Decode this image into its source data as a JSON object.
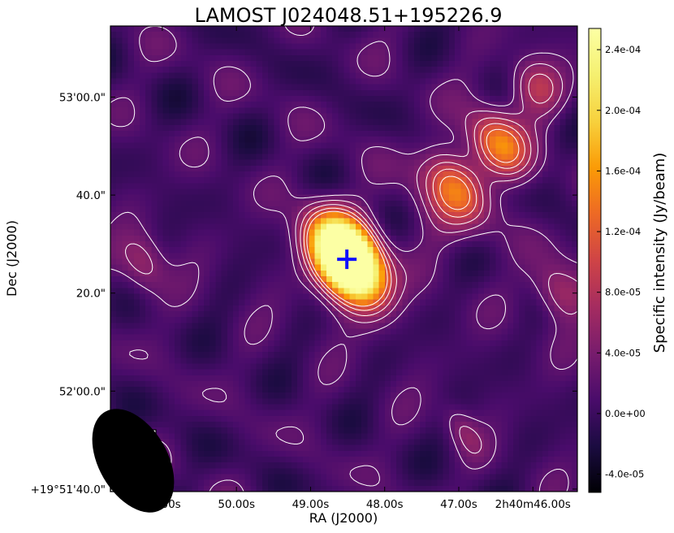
{
  "chart_data": {
    "type": "heatmap",
    "title": "LAMOST J024048.51+195226.9",
    "xlabel": "RA (J2000)",
    "ylabel": "Dec (J2000)",
    "colorbar_label": "Specific intensity (Jy/beam)",
    "colormap": "inferno",
    "xticks": [
      {
        "label": "51.00s",
        "ra_sec": 51.0
      },
      {
        "label": "50.00s",
        "ra_sec": 50.0
      },
      {
        "label": "49.00s",
        "ra_sec": 49.0
      },
      {
        "label": "48.00s",
        "ra_sec": 48.0
      },
      {
        "label": "47.00s",
        "ra_sec": 47.0
      },
      {
        "label": "2h40m46.00s",
        "ra_sec": 46.0
      }
    ],
    "yticks": [
      {
        "label": "53'00.0\"",
        "dec_sec": 60
      },
      {
        "label": "40.0\"",
        "dec_sec": 40
      },
      {
        "label": "20.0\"",
        "dec_sec": 20
      },
      {
        "label": "52'00.0\"",
        "dec_sec": 0
      },
      {
        "label": "+19°51'40.0\"",
        "dec_sec": -20
      }
    ],
    "ra_range_sec": [
      51.7,
      45.4
    ],
    "dec_range_sec": [
      -20.5,
      74.5
    ],
    "colorbar_ticks": [
      {
        "label": "2.4e-04",
        "value": 0.00024
      },
      {
        "label": "2.0e-04",
        "value": 0.0002
      },
      {
        "label": "1.6e-04",
        "value": 0.00016
      },
      {
        "label": "1.2e-04",
        "value": 0.00012
      },
      {
        "label": "8.0e-05",
        "value": 8e-05
      },
      {
        "label": "4.0e-05",
        "value": 4e-05
      },
      {
        "label": "0.0e+00",
        "value": 0.0
      },
      {
        "label": "-4.0e-05",
        "value": -4e-05
      }
    ],
    "colorbar_range": [
      -5.2e-05,
      0.000254
    ],
    "background_level": 5e-06,
    "sources": [
      {
        "ra_sec": 48.51,
        "dec_sec": 26.9,
        "peak": 0.00048,
        "sig_major_arcsec": 6.2,
        "sig_minor_arcsec": 3.8,
        "pa_deg": 30
      },
      {
        "ra_sec": 47.05,
        "dec_sec": 42.0,
        "peak": 0.00011,
        "sig_major_arcsec": 5.5,
        "sig_minor_arcsec": 3.6,
        "pa_deg": 30
      },
      {
        "ra_sec": 46.45,
        "dec_sec": 50.0,
        "peak": 0.00014,
        "sig_major_arcsec": 5.2,
        "sig_minor_arcsec": 3.5,
        "pa_deg": 30
      },
      {
        "ra_sec": 45.95,
        "dec_sec": 62.0,
        "peak": 7.5e-05,
        "sig_major_arcsec": 4.5,
        "sig_minor_arcsec": 3.4,
        "pa_deg": 30
      },
      {
        "ra_sec": 45.65,
        "dec_sec": 20.0,
        "peak": 7.5e-05,
        "sig_major_arcsec": 4.5,
        "sig_minor_arcsec": 3.3,
        "pa_deg": 30
      },
      {
        "ra_sec": 51.25,
        "dec_sec": 26.0,
        "peak": 6e-05,
        "sig_major_arcsec": 4.5,
        "sig_minor_arcsec": 3.0,
        "pa_deg": 10
      },
      {
        "ra_sec": 46.95,
        "dec_sec": -8.0,
        "peak": 4e-05,
        "sig_major_arcsec": 4.0,
        "sig_minor_arcsec": 2.0,
        "pa_deg": 30
      },
      {
        "ra_sec": 47.25,
        "dec_sec": 36.0,
        "peak": 3e-05,
        "sig_major_arcsec": 7.0,
        "sig_minor_arcsec": 5.0,
        "pa_deg": 40
      }
    ],
    "contour_levels": [
      2.2e-05,
      4.5e-05,
      7e-05,
      9.5e-05,
      0.00012
    ],
    "marker": {
      "symbol": "+",
      "color": "#1010ff",
      "ra_sec": 48.51,
      "dec_sec": 26.9
    },
    "beam": {
      "major_arcsec": 11.5,
      "minor_arcsec": 7.0,
      "pa_deg": 30
    }
  }
}
